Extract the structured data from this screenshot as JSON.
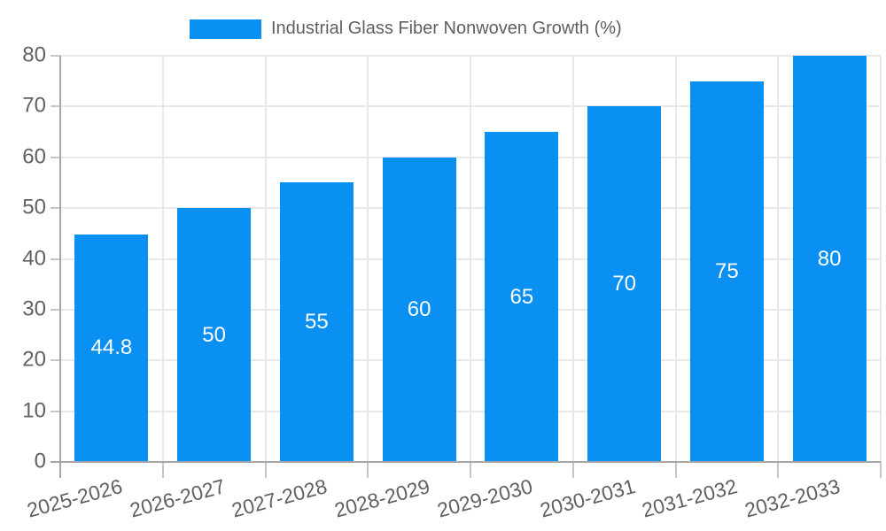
{
  "chart": {
    "legend_label": "Industrial Glass Fiber Nonwoven Growth (%)"
  },
  "chart_data": {
    "type": "bar",
    "title": "Industrial Glass Fiber Nonwoven Growth (%)",
    "categories": [
      "2025-2026",
      "2026-2027",
      "2027-2028",
      "2028-2029",
      "2029-2030",
      "2030-2031",
      "2031-2032",
      "2032-2033"
    ],
    "series": [
      {
        "name": "Industrial Glass Fiber Nonwoven Growth (%)",
        "values": [
          44.8,
          50,
          55,
          60,
          65,
          70,
          75,
          80
        ]
      }
    ],
    "bar_value_labels": [
      "44.8",
      "50",
      "55",
      "60",
      "65",
      "70",
      "75",
      "80"
    ],
    "xlabel": "",
    "ylabel": "",
    "ylim": [
      0,
      80
    ],
    "ytick_step": 10,
    "ytick_labels": [
      "0",
      "10",
      "20",
      "30",
      "40",
      "50",
      "60",
      "70",
      "80"
    ],
    "grid": true,
    "legend_position": "top-center",
    "x_label_rotation_deg": -15,
    "colors": {
      "bar": "#0a90f2",
      "grid": "#e8e8e8",
      "axis": "#a6a6a6",
      "tick_mark": "#c6c6c6",
      "tick_text": "#616161",
      "value_text": "#ffffff",
      "legend_text": "#5f5f5f"
    }
  }
}
